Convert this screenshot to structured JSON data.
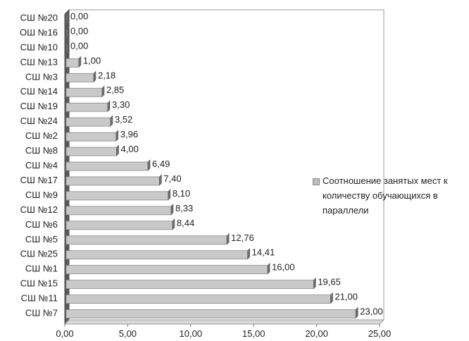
{
  "chart_data": {
    "type": "bar",
    "orientation": "horizontal",
    "title": "",
    "xlabel": "",
    "ylabel": "",
    "xlim": [
      0,
      25
    ],
    "x_ticks": [
      "0,00",
      "5,00",
      "10,00",
      "15,00",
      "20,00",
      "25,00"
    ],
    "grid": true,
    "legend_position": "right",
    "categories": [
      "СШ №20",
      "ОШ №16",
      "СШ №10",
      "СШ №13",
      "СШ №3",
      "СШ №14",
      "СШ №19",
      "СШ №24",
      "СШ №2",
      "СШ №8",
      "СШ №4",
      "СШ №17",
      "СШ №9",
      "СШ №12",
      "СШ №6",
      "СШ №5",
      "СШ №25",
      "СШ №1",
      "СШ №15",
      "СШ №11",
      "СШ №7"
    ],
    "series": [
      {
        "name": "Соотношение занятых мест к количеству обучающихся в параллели",
        "values": [
          0.0,
          0.0,
          0.0,
          1.0,
          2.18,
          2.85,
          3.3,
          3.52,
          3.96,
          4.0,
          6.49,
          7.4,
          8.1,
          8.33,
          8.44,
          12.76,
          14.41,
          16.0,
          19.65,
          21.0,
          23.0
        ],
        "labels": [
          "0,00",
          "0,00",
          "0,00",
          "1,00",
          "2,18",
          "2,85",
          "3,30",
          "3,52",
          "3,96",
          "4,00",
          "6,49",
          "7,40",
          "8,10",
          "8,33",
          "8,44",
          "12,76",
          "14,41",
          "16,00",
          "19,65",
          "21,00",
          "23,00"
        ],
        "color": "#c8c8c8"
      }
    ]
  }
}
